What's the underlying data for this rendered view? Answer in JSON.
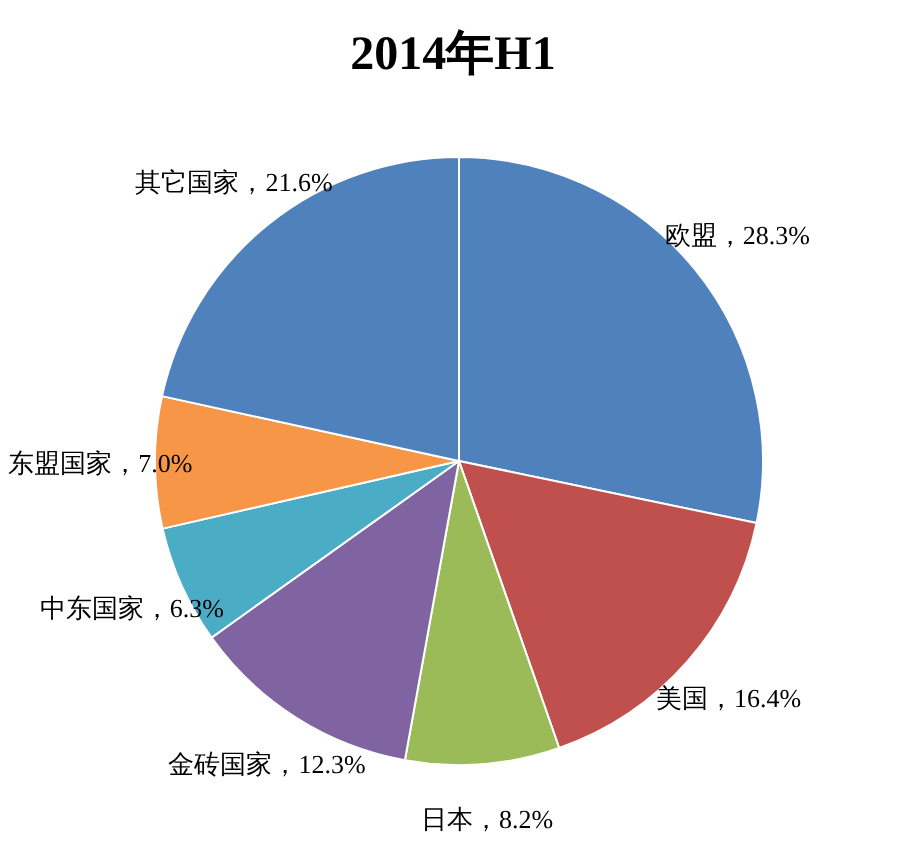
{
  "chart_data": {
    "type": "pie",
    "title": "2014年H1",
    "categories": [
      "欧盟",
      "美国",
      "日本",
      "金砖国家",
      "中东国家",
      "东盟国家",
      "其它国家"
    ],
    "values": [
      28.3,
      16.4,
      8.2,
      12.3,
      6.3,
      7.0,
      21.6
    ],
    "colors": [
      "#4f81bd",
      "#c0504d",
      "#9bbb59",
      "#8064a2",
      "#4bacc6",
      "#f79646",
      "#4f81bd"
    ],
    "value_labels": [
      "28.3%",
      "16.4%",
      "8.2%",
      "12.3%",
      "6.3%",
      "7.0%",
      "21.6%"
    ]
  }
}
